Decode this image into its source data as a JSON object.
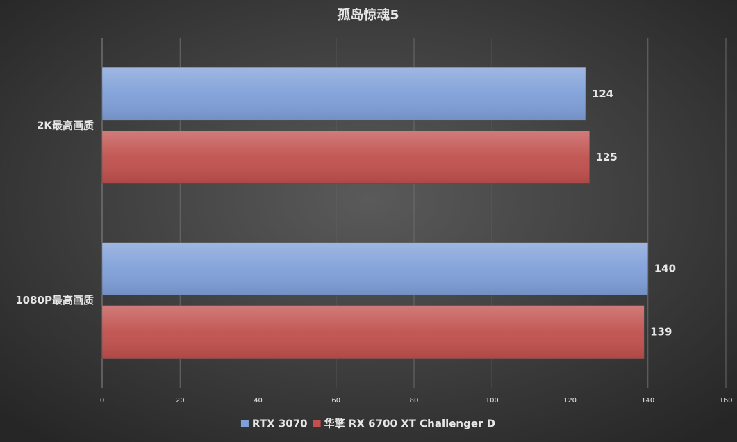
{
  "chart_data": {
    "type": "bar",
    "orientation": "horizontal",
    "title": "孤岛惊魂5",
    "categories": [
      "2K最高画质",
      "1080P最高画质"
    ],
    "series": [
      {
        "name": "RTX 3070",
        "color": "#7f9fd8",
        "values": [
          124,
          140
        ]
      },
      {
        "name": "华擎 RX 6700 XT Challenger D",
        "color": "#c0504d",
        "values": [
          125,
          139
        ]
      }
    ],
    "xlim": [
      0,
      160
    ],
    "xticks": [
      0,
      20,
      40,
      60,
      80,
      100,
      120,
      140,
      160
    ],
    "grid": true,
    "legend": "bottom"
  }
}
